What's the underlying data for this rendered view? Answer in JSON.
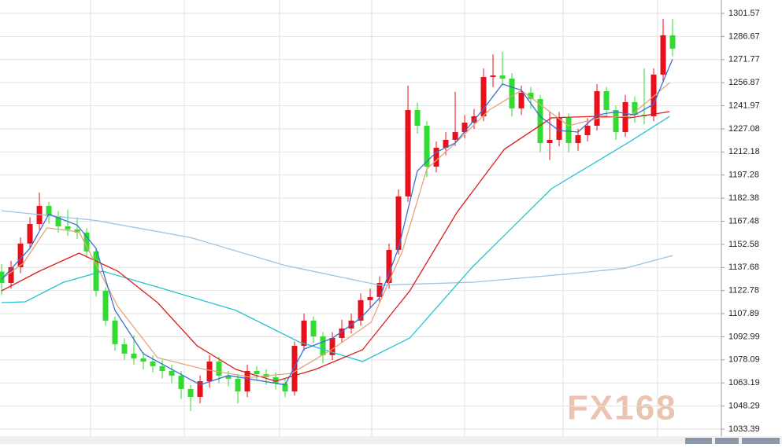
{
  "chart_data": {
    "type": "candlestick",
    "ylim": [
      1028.83,
      1310.19
    ],
    "yticks": [
      1301.57,
      1286.67,
      1271.77,
      1256.87,
      1241.97,
      1227.08,
      1212.18,
      1197.28,
      1182.38,
      1167.48,
      1152.58,
      1137.68,
      1122.78,
      1107.89,
      1092.99,
      1078.09,
      1063.19,
      1048.29,
      1033.39
    ],
    "xlim": [
      -0.17,
      76.08
    ],
    "grid": true,
    "up_color": "#e8101a",
    "down_color": "#2fdc2f",
    "open": [
      1135.0,
      1127.7,
      1137.8,
      1153.1,
      1165.7,
      1177.4,
      1170.8,
      1164.2,
      1162.2,
      1160.2,
      1148.0,
      1122.6,
      1103.4,
      1088.2,
      1082.1,
      1079.0,
      1077.0,
      1074.0,
      1070.9,
      1067.9,
      1059.3,
      1054.2,
      1064.3,
      1077.0,
      1067.9,
      1065.9,
      1057.7,
      1070.9,
      1068.9,
      1066.9,
      1062.8,
      1057.7,
      1087.1,
      1103.4,
      1093.2,
      1081.1,
      1092.2,
      1098.3,
      1103.4,
      1116.6,
      1118.6,
      1127.7,
      1149.0,
      1183.5,
      1239.2,
      1229.1,
      1202.7,
      1214.9,
      1220.0,
      1225.0,
      1231.1,
      1235.2,
      1260.5,
      1261.5,
      1259.5,
      1240.3,
      1250.4,
      1246.3,
      1217.9,
      1220.0,
      1234.2,
      1217.9,
      1223.0,
      1229.1,
      1251.4,
      1239.2,
      1225.0,
      1244.3,
      1236.2,
      1235.2,
      1262.1,
      1287.4
    ],
    "high": [
      1140.0,
      1142.0,
      1157.0,
      1170.0,
      1186.0,
      1180.0,
      1174.0,
      1175.0,
      1170.0,
      1163.0,
      1150.0,
      1125.0,
      1106.0,
      1092.0,
      1094.0,
      1083.0,
      1081.0,
      1078.0,
      1075.0,
      1071.0,
      1062.0,
      1068.0,
      1081.0,
      1080.0,
      1071.0,
      1069.0,
      1075.0,
      1074.0,
      1072.0,
      1070.0,
      1066.0,
      1090.0,
      1108.0,
      1106.0,
      1096.0,
      1096.0,
      1104.0,
      1108.0,
      1121.0,
      1124.0,
      1132.0,
      1153.0,
      1188.0,
      1255.0,
      1244.0,
      1232.0,
      1219.0,
      1225.0,
      1251.0,
      1236.0,
      1240.0,
      1266.0,
      1275.0,
      1277.0,
      1263.0,
      1255.0,
      1254.0,
      1249.0,
      1238.0,
      1238.0,
      1237.0,
      1227.0,
      1234.0,
      1256.0,
      1254.0,
      1242.0,
      1249.0,
      1248.0,
      1266.0,
      1266.0,
      1298.0,
      1298.0
    ],
    "low": [
      1120.0,
      1124.0,
      1134.0,
      1150.0,
      1162.0,
      1166.0,
      1160.0,
      1158.0,
      1156.0,
      1144.0,
      1119.0,
      1100.0,
      1084.0,
      1078.0,
      1075.0,
      1072.0,
      1070.0,
      1066.0,
      1063.0,
      1053.0,
      1045.0,
      1050.0,
      1060.0,
      1063.0,
      1061.0,
      1050.0,
      1054.0,
      1065.0,
      1062.0,
      1059.0,
      1054.0,
      1055.0,
      1084.0,
      1089.0,
      1076.0,
      1078.0,
      1089.0,
      1095.0,
      1100.0,
      1112.0,
      1115.0,
      1124.0,
      1146.0,
      1180.0,
      1224.0,
      1196.0,
      1199.0,
      1210.0,
      1216.0,
      1221.0,
      1227.0,
      1232.0,
      1254.0,
      1255.0,
      1235.0,
      1236.0,
      1240.0,
      1212.0,
      1207.0,
      1216.0,
      1212.0,
      1213.0,
      1219.0,
      1226.0,
      1234.0,
      1220.0,
      1222.0,
      1231.0,
      1230.0,
      1232.0,
      1258.0,
      1274.0
    ],
    "close": [
      1127.7,
      1137.8,
      1153.1,
      1165.7,
      1177.4,
      1170.8,
      1164.2,
      1162.2,
      1160.2,
      1148.0,
      1122.6,
      1103.4,
      1088.2,
      1082.1,
      1079.0,
      1077.0,
      1074.0,
      1070.9,
      1067.9,
      1059.3,
      1054.2,
      1064.3,
      1077.0,
      1067.9,
      1065.9,
      1057.7,
      1070.9,
      1068.9,
      1066.9,
      1062.8,
      1057.7,
      1087.1,
      1103.4,
      1093.2,
      1081.1,
      1092.2,
      1098.3,
      1103.4,
      1116.6,
      1118.6,
      1127.7,
      1149.0,
      1183.5,
      1239.2,
      1229.1,
      1202.7,
      1214.9,
      1220.0,
      1225.0,
      1231.1,
      1235.2,
      1260.5,
      1261.5,
      1259.5,
      1240.3,
      1250.4,
      1246.3,
      1217.9,
      1220.0,
      1234.2,
      1217.9,
      1223.0,
      1229.1,
      1251.4,
      1239.2,
      1225.0,
      1244.3,
      1236.2,
      1235.2,
      1262.1,
      1287.4,
      1278.8
    ],
    "lines": [
      {
        "color": "#9cc3e0",
        "x": [
          0,
          10,
          20,
          30,
          40,
          50,
          60,
          66,
          71
        ],
        "values": [
          1174.3,
          1168,
          1157,
          1139,
          1126.2,
          1128.2,
          1133.5,
          1137.2,
          1145.4
        ]
      },
      {
        "color": "#22c4d2",
        "x": [
          0,
          2.5,
          6.5,
          10.7,
          16.5,
          24.8,
          31.5,
          38.2,
          43.2,
          49.8,
          58.2,
          66.5,
          70.7
        ],
        "values": [
          1115,
          1115.5,
          1128,
          1135.3,
          1125,
          1110,
          1089.6,
          1077,
          1092.2,
          1137.8,
          1188.5,
          1218.9,
          1235.2
        ]
      },
      {
        "color": "#d81e1e",
        "x": [
          0,
          4,
          8.2,
          12.3,
          16.5,
          20.7,
          24.8,
          29,
          33.2,
          38.2,
          43.2,
          48.2,
          53.2,
          58.2,
          63.3,
          66.5,
          70.7
        ],
        "values": [
          1122.6,
          1135.3,
          1146.9,
          1135.3,
          1115,
          1087.1,
          1071.9,
          1064.3,
          1071.9,
          1084.6,
          1122.6,
          1173.3,
          1213.9,
          1234.2,
          1235.2,
          1234.2,
          1238.2
        ]
      },
      {
        "color": "#e2a47a",
        "x": [
          0,
          2.3,
          4.8,
          8.2,
          12.3,
          16.5,
          21.5,
          26.5,
          30.7,
          34.9,
          39.1,
          42.4,
          45,
          48.2,
          51.6,
          55,
          60,
          63.3,
          66.5,
          70.7
        ],
        "values": [
          1130.2,
          1140.4,
          1163.2,
          1160.6,
          1112.5,
          1079.5,
          1071.9,
          1066.8,
          1069.4,
          1084.6,
          1102.3,
          1148.0,
          1201.2,
          1218.9,
          1239.2,
          1251.9,
          1229.1,
          1234.2,
          1235.2,
          1256.9
        ]
      },
      {
        "color": "#3b6fd6",
        "x": [
          0,
          3,
          5,
          8,
          10,
          12,
          15,
          18,
          21,
          24,
          27,
          30,
          32,
          35,
          38,
          40,
          42,
          44,
          46,
          48,
          51,
          53,
          55,
          57,
          59,
          61,
          63,
          65,
          67,
          69,
          71
        ],
        "values": [
          1130,
          1150,
          1172,
          1165,
          1150,
          1110,
          1082,
          1072,
          1062,
          1068,
          1065,
          1062,
          1085,
          1092,
          1105,
          1118,
          1150,
          1200,
          1212,
          1218,
          1240,
          1256,
          1252,
          1235,
          1226,
          1225,
          1236,
          1238,
          1236,
          1243,
          1272
        ]
      }
    ]
  },
  "watermark": "FX168"
}
